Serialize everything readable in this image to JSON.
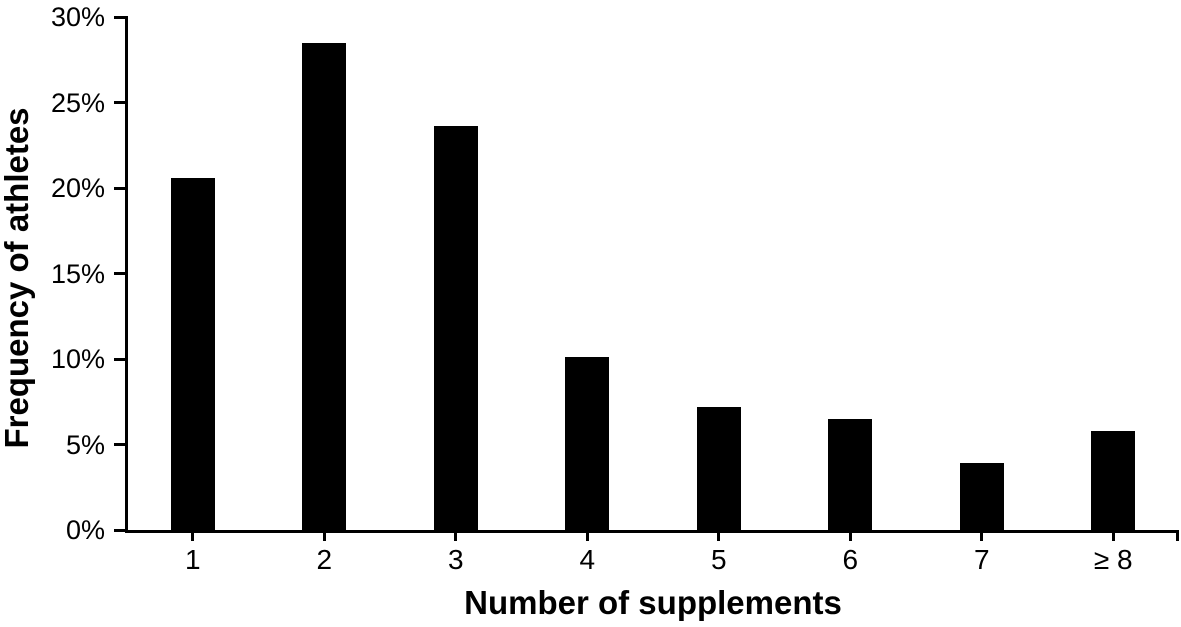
{
  "figure": {
    "background": "#ffffff",
    "text_color": "#000000"
  },
  "chart_data": {
    "type": "bar",
    "title": "",
    "xlabel": "Number of supplements",
    "ylabel": "Frequency of athletes",
    "categories": [
      "1",
      "2",
      "3",
      "4",
      "5",
      "6",
      "7",
      "≥ 8"
    ],
    "values": [
      20.6,
      28.5,
      23.6,
      10.1,
      7.2,
      6.5,
      3.9,
      5.8
    ],
    "value_unit": "%",
    "ylim": [
      0,
      30
    ],
    "yticks": [
      {
        "value": 0,
        "label": "0%"
      },
      {
        "value": 5,
        "label": "5%"
      },
      {
        "value": 10,
        "label": "10%"
      },
      {
        "value": 15,
        "label": "15%"
      },
      {
        "value": 20,
        "label": "20%"
      },
      {
        "value": 25,
        "label": "25%"
      },
      {
        "value": 30,
        "label": "30%"
      }
    ],
    "bar_color": "#000000",
    "axis_color": "#000000",
    "grid": false,
    "legend": null
  }
}
